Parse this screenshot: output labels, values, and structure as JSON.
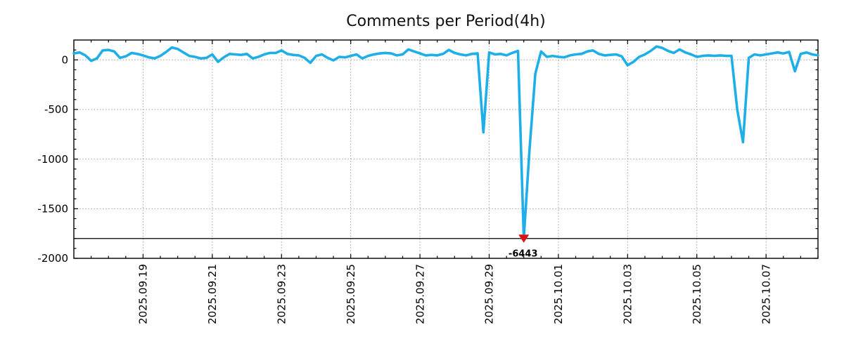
{
  "title": "Comments per Period(4h)",
  "figure_bg": "#ffffff",
  "chart_data": {
    "type": "line",
    "title": "Comments per Period(4h)",
    "xlabel": "",
    "ylabel": "",
    "grid": true,
    "line_color": "#1FAFE8",
    "marker_color": "#DD1111",
    "annotation_color": "#00AEEF",
    "grid_color": "#9e9e9e",
    "frame_color": "#000000",
    "start": "2025-09-17 00:00",
    "interval_hours": 4,
    "ylim": [
      -2000,
      200
    ],
    "clip_line_value": -1800,
    "min_annotation": {
      "index": 78,
      "value": -6443,
      "value_label": "-6443"
    },
    "y_ticks": {
      "values": [
        0,
        -500,
        -1000,
        -1500,
        -2000
      ],
      "labels": [
        "0",
        "-500",
        "-1000",
        "-1500",
        "-2000"
      ],
      "minor_step": 100
    },
    "x_ticks": {
      "indices": [
        12,
        24,
        36,
        48,
        60,
        72,
        84,
        96,
        108,
        120
      ],
      "labels": [
        "2025.09.19",
        "2025.09.21",
        "2025.09.23",
        "2025.09.25",
        "2025.09.27",
        "2025.09.29",
        "2025.10.01",
        "2025.10.03",
        "2025.10.05",
        "2025.10.07"
      ],
      "minor_every_points": 3
    },
    "values": [
      65,
      75,
      45,
      -10,
      15,
      95,
      100,
      85,
      20,
      35,
      70,
      60,
      45,
      25,
      15,
      40,
      80,
      125,
      110,
      75,
      40,
      30,
      15,
      20,
      55,
      -20,
      25,
      60,
      55,
      50,
      60,
      15,
      30,
      55,
      70,
      70,
      95,
      60,
      50,
      45,
      20,
      -30,
      40,
      55,
      20,
      -5,
      30,
      25,
      40,
      55,
      15,
      40,
      55,
      65,
      70,
      65,
      45,
      55,
      105,
      85,
      65,
      45,
      50,
      45,
      60,
      100,
      70,
      55,
      45,
      60,
      65,
      -730,
      75,
      55,
      60,
      45,
      70,
      90,
      -6443,
      -900,
      -140,
      85,
      30,
      40,
      30,
      25,
      45,
      55,
      60,
      85,
      95,
      60,
      45,
      50,
      55,
      35,
      -55,
      -20,
      30,
      55,
      90,
      135,
      120,
      90,
      70,
      105,
      75,
      55,
      30,
      40,
      45,
      40,
      45,
      40,
      40,
      -500,
      -830,
      20,
      55,
      45,
      55,
      65,
      75,
      65,
      80,
      -115,
      60,
      75,
      55,
      45
    ]
  }
}
